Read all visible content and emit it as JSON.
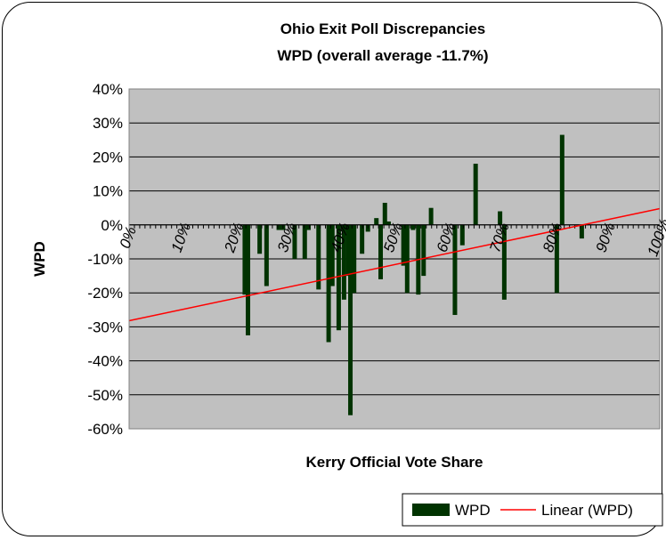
{
  "chart_data": {
    "type": "bar",
    "title": "Ohio Exit Poll Discrepancies",
    "subtitle": "WPD (overall average -11.7%)",
    "xlabel": "Kerry Official Vote Share",
    "ylabel": "WPD",
    "xlim": [
      0,
      100
    ],
    "ylim": [
      -60,
      40
    ],
    "xticks": [
      "0%",
      "10%",
      "20%",
      "30%",
      "40%",
      "50%",
      "60%",
      "70%",
      "80%",
      "90%",
      "100%"
    ],
    "yticks": [
      "40%",
      "30%",
      "20%",
      "10%",
      "0%",
      "-10%",
      "-20%",
      "-30%",
      "-40%",
      "-50%",
      "-60%"
    ],
    "grid": true,
    "background": "#c0c0c0",
    "legend_position": "bottom-right",
    "series": [
      {
        "name": "WPD",
        "kind": "bar",
        "color": "#003300",
        "points": [
          {
            "x": 21.8,
            "y": -20.5
          },
          {
            "x": 22.4,
            "y": -32.5
          },
          {
            "x": 24.6,
            "y": -8.5
          },
          {
            "x": 25.9,
            "y": -18.0
          },
          {
            "x": 28.2,
            "y": -1.5
          },
          {
            "x": 29.0,
            "y": -1.5
          },
          {
            "x": 31.2,
            "y": -10.0
          },
          {
            "x": 33.1,
            "y": -10.0
          },
          {
            "x": 33.8,
            "y": -1.5
          },
          {
            "x": 35.7,
            "y": -19.0
          },
          {
            "x": 37.6,
            "y": -34.5
          },
          {
            "x": 38.3,
            "y": -18.0
          },
          {
            "x": 39.5,
            "y": -31.0
          },
          {
            "x": 40.5,
            "y": -22.0
          },
          {
            "x": 41.3,
            "y": -15.0
          },
          {
            "x": 41.7,
            "y": -56.0
          },
          {
            "x": 42.4,
            "y": -20.0
          },
          {
            "x": 43.9,
            "y": -8.5
          },
          {
            "x": 45.0,
            "y": -2.0
          },
          {
            "x": 46.6,
            "y": 2.0
          },
          {
            "x": 47.4,
            "y": -16.0
          },
          {
            "x": 48.2,
            "y": 6.5
          },
          {
            "x": 48.9,
            "y": 1.0
          },
          {
            "x": 51.7,
            "y": -12.0
          },
          {
            "x": 52.4,
            "y": -20.0
          },
          {
            "x": 53.5,
            "y": -1.5
          },
          {
            "x": 54.5,
            "y": -20.5
          },
          {
            "x": 55.5,
            "y": -15.0
          },
          {
            "x": 56.9,
            "y": 5.0
          },
          {
            "x": 61.4,
            "y": -26.5
          },
          {
            "x": 62.8,
            "y": -6.0
          },
          {
            "x": 65.3,
            "y": 18.0
          },
          {
            "x": 69.9,
            "y": 4.0
          },
          {
            "x": 70.7,
            "y": -22.0
          },
          {
            "x": 80.6,
            "y": -20.0
          },
          {
            "x": 81.6,
            "y": 26.5
          },
          {
            "x": 85.3,
            "y": -4.0
          }
        ]
      },
      {
        "name": "Linear (WPD)",
        "kind": "trendline",
        "color": "#ff0000",
        "points": [
          {
            "x": 0,
            "y": -28.2
          },
          {
            "x": 100,
            "y": 4.8
          }
        ]
      }
    ]
  }
}
